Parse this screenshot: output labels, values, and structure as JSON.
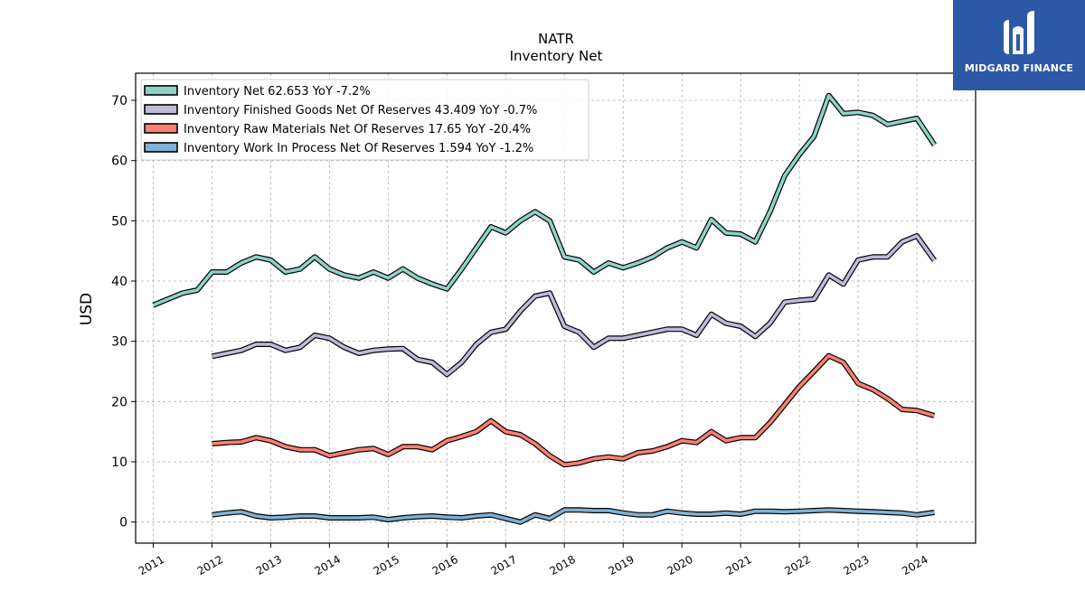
{
  "brand": {
    "name": "MIDGARD FINANCE",
    "logo_icon": "midgard-finance-logo-icon",
    "background": "#2d58a5"
  },
  "chart_data": {
    "type": "line",
    "title": "NATR",
    "subtitle": "Inventory Net",
    "xlabel": "",
    "ylabel": "USD",
    "xlim": [
      2010.7,
      2025.0
    ],
    "ylim": [
      -3.5,
      74.5
    ],
    "yticks": [
      0,
      10,
      20,
      30,
      40,
      50,
      60,
      70
    ],
    "xticks": [
      "2011",
      "2012",
      "2013",
      "2014",
      "2015",
      "2016",
      "2017",
      "2018",
      "2019",
      "2020",
      "2021",
      "2022",
      "2023",
      "2024"
    ],
    "grid": true,
    "legend_position": "top-left",
    "series": [
      {
        "name": "Inventory Net",
        "legend_label": "Inventory Net  62.653 YoY -7.2%",
        "color": "#8dd3c7",
        "points": [
          [
            2011.0,
            36.0
          ],
          [
            2011.25,
            37.0
          ],
          [
            2011.5,
            38.0
          ],
          [
            2011.75,
            38.5
          ],
          [
            2012.0,
            41.5
          ],
          [
            2012.25,
            41.5
          ],
          [
            2012.5,
            43.0
          ],
          [
            2012.75,
            44.0
          ],
          [
            2013.0,
            43.5
          ],
          [
            2013.25,
            41.5
          ],
          [
            2013.5,
            42.0
          ],
          [
            2013.75,
            44.0
          ],
          [
            2014.0,
            42.0
          ],
          [
            2014.25,
            41.0
          ],
          [
            2014.5,
            40.5
          ],
          [
            2014.75,
            41.5
          ],
          [
            2015.0,
            40.5
          ],
          [
            2015.25,
            42.0
          ],
          [
            2015.5,
            40.5
          ],
          [
            2015.75,
            39.5
          ],
          [
            2016.0,
            38.7
          ],
          [
            2016.25,
            42.0
          ],
          [
            2016.5,
            45.5
          ],
          [
            2016.75,
            49.0
          ],
          [
            2017.0,
            48.0
          ],
          [
            2017.25,
            50.0
          ],
          [
            2017.5,
            51.5
          ],
          [
            2017.75,
            50.0
          ],
          [
            2018.0,
            44.0
          ],
          [
            2018.25,
            43.5
          ],
          [
            2018.5,
            41.5
          ],
          [
            2018.75,
            43.0
          ],
          [
            2019.0,
            42.2
          ],
          [
            2019.25,
            43.0
          ],
          [
            2019.5,
            44.0
          ],
          [
            2019.75,
            45.5
          ],
          [
            2020.0,
            46.5
          ],
          [
            2020.25,
            45.5
          ],
          [
            2020.5,
            50.2
          ],
          [
            2020.75,
            48.0
          ],
          [
            2021.0,
            47.8
          ],
          [
            2021.25,
            46.5
          ],
          [
            2021.5,
            51.5
          ],
          [
            2021.75,
            57.5
          ],
          [
            2022.0,
            61.0
          ],
          [
            2022.25,
            64.0
          ],
          [
            2022.5,
            70.8
          ],
          [
            2022.75,
            67.8
          ],
          [
            2023.0,
            68.0
          ],
          [
            2023.25,
            67.5
          ],
          [
            2023.5,
            66.0
          ],
          [
            2023.75,
            66.5
          ],
          [
            2024.0,
            67.0
          ],
          [
            2024.3,
            62.6
          ]
        ]
      },
      {
        "name": "Inventory Finished Goods Net Of Reserves",
        "legend_label": "Inventory Finished Goods Net Of Reserves  43.409 YoY -0.7%",
        "color": "#bebada",
        "points": [
          [
            2012.0,
            27.5
          ],
          [
            2012.25,
            28.0
          ],
          [
            2012.5,
            28.5
          ],
          [
            2012.75,
            29.5
          ],
          [
            2013.0,
            29.5
          ],
          [
            2013.25,
            28.5
          ],
          [
            2013.5,
            29.0
          ],
          [
            2013.75,
            31.0
          ],
          [
            2014.0,
            30.5
          ],
          [
            2014.25,
            29.0
          ],
          [
            2014.5,
            28.0
          ],
          [
            2014.75,
            28.5
          ],
          [
            2015.0,
            28.7
          ],
          [
            2015.25,
            28.8
          ],
          [
            2015.5,
            27.0
          ],
          [
            2015.75,
            26.5
          ],
          [
            2016.0,
            24.5
          ],
          [
            2016.25,
            26.5
          ],
          [
            2016.5,
            29.5
          ],
          [
            2016.75,
            31.5
          ],
          [
            2017.0,
            32.0
          ],
          [
            2017.25,
            35.0
          ],
          [
            2017.5,
            37.5
          ],
          [
            2017.75,
            38.0
          ],
          [
            2018.0,
            32.5
          ],
          [
            2018.25,
            31.5
          ],
          [
            2018.5,
            29.0
          ],
          [
            2018.75,
            30.5
          ],
          [
            2019.0,
            30.5
          ],
          [
            2019.25,
            31.0
          ],
          [
            2019.5,
            31.5
          ],
          [
            2019.75,
            32.0
          ],
          [
            2020.0,
            32.0
          ],
          [
            2020.25,
            31.0
          ],
          [
            2020.5,
            34.5
          ],
          [
            2020.75,
            33.0
          ],
          [
            2021.0,
            32.5
          ],
          [
            2021.25,
            30.8
          ],
          [
            2021.5,
            33.0
          ],
          [
            2021.75,
            36.5
          ],
          [
            2022.0,
            36.8
          ],
          [
            2022.25,
            37.0
          ],
          [
            2022.5,
            41.0
          ],
          [
            2022.75,
            39.5
          ],
          [
            2023.0,
            43.5
          ],
          [
            2023.25,
            44.0
          ],
          [
            2023.5,
            44.0
          ],
          [
            2023.75,
            46.5
          ],
          [
            2024.0,
            47.5
          ],
          [
            2024.3,
            43.4
          ]
        ]
      },
      {
        "name": "Inventory Raw Materials Net Of Reserves",
        "legend_label": "Inventory Raw Materials Net Of Reserves  17.65 YoY -20.4%",
        "color": "#fb8072",
        "points": [
          [
            2012.0,
            13.0
          ],
          [
            2012.25,
            13.2
          ],
          [
            2012.5,
            13.3
          ],
          [
            2012.75,
            14.0
          ],
          [
            2013.0,
            13.5
          ],
          [
            2013.25,
            12.5
          ],
          [
            2013.5,
            12.0
          ],
          [
            2013.75,
            12.0
          ],
          [
            2014.0,
            11.0
          ],
          [
            2014.25,
            11.5
          ],
          [
            2014.5,
            12.0
          ],
          [
            2014.75,
            12.2
          ],
          [
            2015.0,
            11.2
          ],
          [
            2015.25,
            12.5
          ],
          [
            2015.5,
            12.5
          ],
          [
            2015.75,
            12.0
          ],
          [
            2016.0,
            13.5
          ],
          [
            2016.25,
            14.2
          ],
          [
            2016.5,
            15.0
          ],
          [
            2016.75,
            16.8
          ],
          [
            2017.0,
            15.0
          ],
          [
            2017.25,
            14.5
          ],
          [
            2017.5,
            13.0
          ],
          [
            2017.75,
            11.0
          ],
          [
            2018.0,
            9.5
          ],
          [
            2018.25,
            9.8
          ],
          [
            2018.5,
            10.5
          ],
          [
            2018.75,
            10.8
          ],
          [
            2019.0,
            10.5
          ],
          [
            2019.25,
            11.5
          ],
          [
            2019.5,
            11.8
          ],
          [
            2019.75,
            12.5
          ],
          [
            2020.0,
            13.5
          ],
          [
            2020.25,
            13.2
          ],
          [
            2020.5,
            15.0
          ],
          [
            2020.75,
            13.5
          ],
          [
            2021.0,
            14.0
          ],
          [
            2021.25,
            14.0
          ],
          [
            2021.5,
            16.5
          ],
          [
            2021.75,
            19.5
          ],
          [
            2022.0,
            22.5
          ],
          [
            2022.25,
            25.0
          ],
          [
            2022.5,
            27.6
          ],
          [
            2022.75,
            26.5
          ],
          [
            2023.0,
            23.0
          ],
          [
            2023.25,
            22.0
          ],
          [
            2023.5,
            20.5
          ],
          [
            2023.75,
            18.7
          ],
          [
            2024.0,
            18.5
          ],
          [
            2024.3,
            17.65
          ]
        ]
      },
      {
        "name": "Inventory Work In Process Net Of Reserves",
        "legend_label": "Inventory Work In Process Net Of Reserves  1.594 YoY -1.2%",
        "color": "#80b1d3",
        "points": [
          [
            2012.0,
            1.2
          ],
          [
            2012.25,
            1.5
          ],
          [
            2012.5,
            1.7
          ],
          [
            2012.75,
            1.0
          ],
          [
            2013.0,
            0.7
          ],
          [
            2013.25,
            0.8
          ],
          [
            2013.5,
            1.0
          ],
          [
            2013.75,
            1.0
          ],
          [
            2014.0,
            0.7
          ],
          [
            2014.25,
            0.7
          ],
          [
            2014.5,
            0.7
          ],
          [
            2014.75,
            0.8
          ],
          [
            2015.0,
            0.4
          ],
          [
            2015.25,
            0.7
          ],
          [
            2015.5,
            0.9
          ],
          [
            2015.75,
            1.0
          ],
          [
            2016.0,
            0.8
          ],
          [
            2016.25,
            0.7
          ],
          [
            2016.5,
            1.0
          ],
          [
            2016.75,
            1.2
          ],
          [
            2017.0,
            0.6
          ],
          [
            2017.25,
            0.0
          ],
          [
            2017.5,
            1.2
          ],
          [
            2017.75,
            0.6
          ],
          [
            2018.0,
            2.0
          ],
          [
            2018.25,
            2.0
          ],
          [
            2018.5,
            1.9
          ],
          [
            2018.75,
            1.9
          ],
          [
            2019.0,
            1.5
          ],
          [
            2019.25,
            1.2
          ],
          [
            2019.5,
            1.2
          ],
          [
            2019.75,
            1.8
          ],
          [
            2020.0,
            1.5
          ],
          [
            2020.25,
            1.3
          ],
          [
            2020.5,
            1.3
          ],
          [
            2020.75,
            1.5
          ],
          [
            2021.0,
            1.3
          ],
          [
            2021.25,
            1.8
          ],
          [
            2021.5,
            1.8
          ],
          [
            2021.75,
            1.7
          ],
          [
            2022.0,
            1.8
          ],
          [
            2022.25,
            1.9
          ],
          [
            2022.5,
            2.0
          ],
          [
            2022.75,
            1.9
          ],
          [
            2023.0,
            1.8
          ],
          [
            2023.25,
            1.7
          ],
          [
            2023.5,
            1.6
          ],
          [
            2023.75,
            1.5
          ],
          [
            2024.0,
            1.2
          ],
          [
            2024.3,
            1.6
          ]
        ]
      }
    ]
  }
}
